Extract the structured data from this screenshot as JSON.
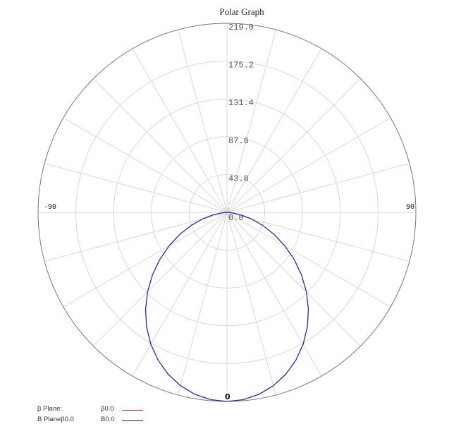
{
  "chart_data": {
    "type": "line",
    "subtype": "polar",
    "title": "Polar Graph",
    "angle_unit": "degrees",
    "angle_zero_position": "bottom",
    "angle_labels": [
      {
        "text": "-90",
        "angle": -90
      },
      {
        "text": "90",
        "angle": 90
      },
      {
        "text": "0",
        "angle": 0
      }
    ],
    "radial_ticks": [
      "0.0",
      "43.8",
      "87.6",
      "131.4",
      "175.2",
      "219.0"
    ],
    "radial_range": [
      0,
      219.0
    ],
    "spoke_step_deg": 15,
    "grid": true,
    "series": [
      {
        "name": "B Planeβ0.0",
        "value_label": "B0.0",
        "color": "#3a1fa0",
        "theta": [
          -90,
          -85,
          -80,
          -75,
          -70,
          -65,
          -60,
          -55,
          -50,
          -45,
          -40,
          -35,
          -30,
          -25,
          -20,
          -15,
          -10,
          -5,
          0,
          5,
          10,
          15,
          20,
          25,
          30,
          35,
          40,
          45,
          50,
          55,
          60,
          65,
          70,
          75,
          80,
          85,
          90
        ],
        "r": [
          0,
          5.6,
          15.8,
          28.8,
          43.8,
          60.2,
          77.4,
          95.1,
          112.9,
          130.2,
          146.8,
          162.4,
          176.5,
          189.0,
          199.5,
          207.9,
          214.0,
          217.8,
          219.0,
          217.8,
          214.0,
          207.9,
          199.5,
          189.0,
          176.5,
          162.4,
          146.8,
          130.2,
          112.9,
          95.1,
          77.4,
          60.2,
          43.8,
          28.8,
          15.8,
          5.6,
          0
        ]
      }
    ],
    "legend": [
      {
        "name": "β Plane:",
        "value": "β0.0",
        "color": "#cc2222"
      },
      {
        "name": "B Planeβ0.0",
        "value": "B0.0",
        "color": "#1a1a4a"
      }
    ],
    "legend_position": "bottom-left"
  }
}
